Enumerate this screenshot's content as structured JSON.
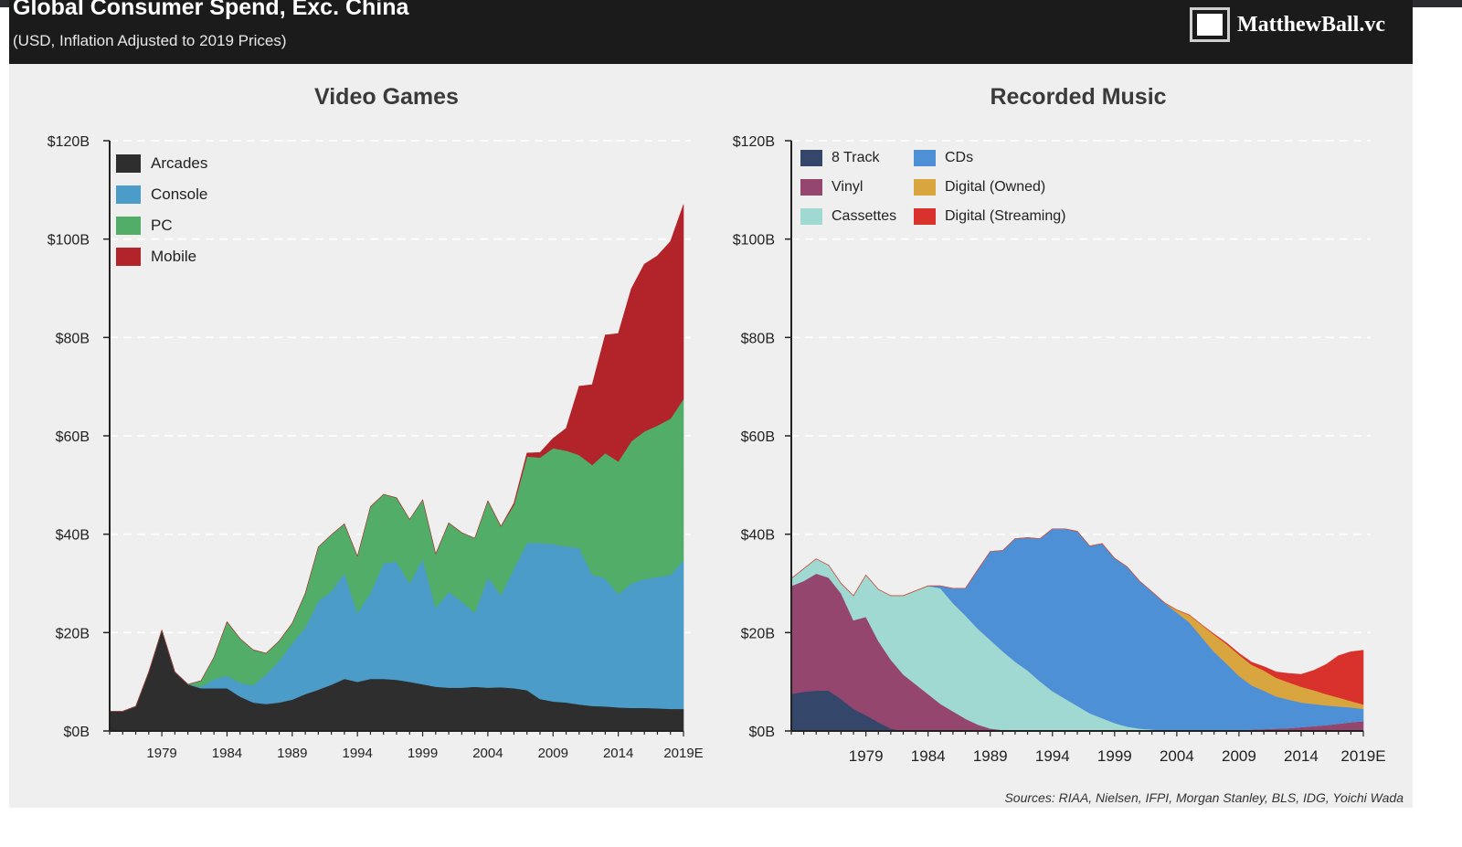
{
  "header": {
    "title": "Global Consumer Spend, Exc. China",
    "subtitle": "(USD, Inflation Adjusted to 2019 Prices)",
    "brand": "MatthewBall.vc",
    "brand_icon": "square-logo-icon"
  },
  "source": "Sources: RIAA, Nielsen, IFPI, Morgan Stanley, BLS, IDG, Yoichi Wada",
  "colors": {
    "arcades": "#2e2e2e",
    "console": "#4b9cc8",
    "pc": "#52ad68",
    "mobile": "#b3232a",
    "track8": "#34466a",
    "vinyl": "#94466f",
    "cassettes": "#9fd9d2",
    "cds": "#4e90d6",
    "digital_owned": "#d9a53e",
    "digital_streaming": "#d9322d"
  },
  "chart_data": [
    {
      "type": "area",
      "stacked": true,
      "title": "Video Games",
      "xlabel": "",
      "ylabel": "",
      "x": [
        1975,
        1976,
        1977,
        1978,
        1979,
        1980,
        1981,
        1982,
        1983,
        1984,
        1985,
        1986,
        1987,
        1988,
        1989,
        1990,
        1991,
        1992,
        1993,
        1994,
        1995,
        1996,
        1997,
        1998,
        1999,
        2000,
        2001,
        2002,
        2003,
        2004,
        2005,
        2006,
        2007,
        2008,
        2009,
        2010,
        2011,
        2012,
        2013,
        2014,
        2015,
        2016,
        2017,
        2018,
        2019
      ],
      "xticks": [
        "1979",
        "1984",
        "1989",
        "1994",
        "1999",
        "2004",
        "2009",
        "2014",
        "2019E"
      ],
      "xtick_values": [
        1979,
        1984,
        1989,
        1994,
        1999,
        2004,
        2009,
        2014,
        2019
      ],
      "ylim": [
        0,
        120
      ],
      "yticks": [
        "$0B",
        "$20B",
        "$40B",
        "$60B",
        "$80B",
        "$100B",
        "$120B"
      ],
      "ytick_values": [
        0,
        20,
        40,
        60,
        80,
        100,
        120
      ],
      "grid": "horizontal dashed",
      "legend": "top-left",
      "series": [
        {
          "name": "Arcades",
          "color_key": "arcades",
          "values": [
            4,
            4,
            5,
            12,
            20.5,
            12,
            9.5,
            8.7,
            8.7,
            8.7,
            7,
            5.8,
            5.5,
            5.8,
            6.4,
            7.5,
            8.4,
            9.4,
            10.6,
            10,
            10.6,
            10.6,
            10.4,
            10,
            9.5,
            9,
            8.8,
            8.8,
            9,
            8.8,
            8.9,
            8.7,
            8.3,
            6.5,
            6,
            5.8,
            5.4,
            5.1,
            5,
            4.8,
            4.7,
            4.7,
            4.6,
            4.5,
            4.5
          ]
        },
        {
          "name": "Console",
          "color_key": "console",
          "values": [
            0,
            0,
            0,
            0,
            0,
            0,
            0,
            0.3,
            1.8,
            2.5,
            2.8,
            3.5,
            6,
            8.5,
            11.5,
            13.5,
            18,
            19,
            21.5,
            14,
            17.5,
            23.5,
            24,
            20,
            25.5,
            16,
            19.5,
            17.5,
            15,
            22.5,
            18.7,
            24.3,
            30,
            31.7,
            32,
            31.7,
            31.8,
            26.7,
            26,
            23,
            25.3,
            26.2,
            26.7,
            27.2,
            30.2
          ]
        },
        {
          "name": "PC",
          "color_key": "pc",
          "values": [
            0,
            0,
            0,
            0,
            0,
            0,
            0,
            1.2,
            4.5,
            11,
            9,
            7.2,
            4.3,
            4,
            4,
            7,
            11,
            11.5,
            10,
            11.5,
            17.5,
            14,
            13,
            13,
            12,
            11,
            14,
            14,
            15.2,
            15.5,
            14,
            13,
            17.5,
            17.4,
            19.5,
            19.5,
            18.9,
            22.3,
            25.5,
            27,
            28.9,
            30,
            30.8,
            31.8,
            32.8
          ]
        },
        {
          "name": "Mobile",
          "color_key": "mobile",
          "values": [
            0,
            0,
            0,
            0,
            0,
            0,
            0,
            0,
            0,
            0,
            0,
            0,
            0,
            0,
            0,
            0,
            0,
            0,
            0,
            0,
            0,
            0,
            0,
            0,
            0,
            0,
            0,
            0,
            0,
            0,
            0,
            0.3,
            0.7,
            1,
            2,
            4.5,
            14,
            16.3,
            24,
            26,
            31,
            34,
            34.5,
            36,
            39.5
          ]
        }
      ]
    },
    {
      "type": "area",
      "stacked": true,
      "title": "Recorded Music",
      "xlabel": "",
      "ylabel": "",
      "x": [
        1973,
        1974,
        1975,
        1976,
        1977,
        1978,
        1979,
        1980,
        1981,
        1982,
        1983,
        1984,
        1985,
        1986,
        1987,
        1988,
        1989,
        1990,
        1991,
        1992,
        1993,
        1994,
        1995,
        1996,
        1997,
        1998,
        1999,
        2000,
        2001,
        2002,
        2003,
        2004,
        2005,
        2006,
        2007,
        2008,
        2009,
        2010,
        2011,
        2012,
        2013,
        2014,
        2015,
        2016,
        2017,
        2018,
        2019
      ],
      "xticks": [
        "1979",
        "1984",
        "1989",
        "1994",
        "1999",
        "2004",
        "2009",
        "2014",
        "2019E"
      ],
      "xtick_values": [
        1979,
        1984,
        1989,
        1994,
        1999,
        2004,
        2009,
        2014,
        2019
      ],
      "ylim": [
        0,
        120
      ],
      "yticks": [
        "$0B",
        "$20B",
        "$40B",
        "$60B",
        "$80B",
        "$100B",
        "$120B"
      ],
      "ytick_values": [
        0,
        20,
        40,
        60,
        80,
        100,
        120
      ],
      "grid": "horizontal dashed",
      "legend": "top-left",
      "series": [
        {
          "name": "8 Track",
          "color_key": "track8",
          "values": [
            7.5,
            8,
            8.2,
            8.2,
            6.5,
            4.5,
            3.2,
            1.8,
            0.5,
            0,
            0,
            0,
            0,
            0,
            0,
            0,
            0,
            0,
            0,
            0,
            0,
            0,
            0,
            0,
            0,
            0,
            0,
            0,
            0,
            0,
            0,
            0,
            0,
            0,
            0,
            0,
            0,
            0,
            0,
            0,
            0,
            0,
            0,
            0,
            0,
            0,
            0
          ]
        },
        {
          "name": "Vinyl",
          "color_key": "vinyl",
          "values": [
            22,
            22.5,
            23.8,
            23,
            21.5,
            18,
            20,
            16.5,
            14,
            11.5,
            9.5,
            7.5,
            5.5,
            4,
            2.5,
            1.3,
            0.5,
            0.2,
            0.1,
            0.1,
            0.1,
            0.1,
            0.1,
            0.1,
            0.1,
            0.1,
            0.1,
            0.1,
            0.1,
            0.1,
            0.1,
            0.1,
            0.1,
            0.1,
            0.1,
            0.2,
            0.2,
            0.3,
            0.4,
            0.5,
            0.6,
            0.8,
            1,
            1.2,
            1.5,
            1.8,
            2
          ]
        },
        {
          "name": "Cassettes",
          "color_key": "cassettes",
          "values": [
            1.5,
            2.5,
            3,
            2.5,
            2,
            5,
            8.5,
            10.5,
            13,
            16,
            19,
            22,
            23.5,
            22,
            21,
            19.5,
            18,
            16,
            14,
            12.2,
            10,
            8,
            6.5,
            5,
            3.5,
            2.5,
            1.5,
            0.8,
            0.4,
            0.2,
            0,
            0,
            0,
            0,
            0,
            0,
            0,
            0,
            0,
            0,
            0,
            0,
            0,
            0,
            0,
            0,
            0
          ]
        },
        {
          "name": "CDs",
          "color_key": "cds",
          "values": [
            0,
            0,
            0,
            0,
            0,
            0,
            0,
            0,
            0,
            0,
            0,
            0,
            0.5,
            3,
            5.5,
            12,
            18,
            20.5,
            25,
            27,
            29,
            33,
            34.5,
            35.5,
            34,
            35.5,
            33.5,
            32.5,
            30,
            28,
            26,
            24,
            22,
            19,
            16,
            13.5,
            11,
            9,
            7.8,
            6.5,
            5.8,
            5,
            4.5,
            4,
            3.5,
            3,
            2.5
          ]
        },
        {
          "name": "Digital (Owned)",
          "color_key": "digital_owned",
          "values": [
            0,
            0,
            0,
            0,
            0,
            0,
            0,
            0,
            0,
            0,
            0,
            0,
            0,
            0,
            0,
            0,
            0,
            0,
            0,
            0,
            0,
            0,
            0,
            0,
            0,
            0,
            0,
            0,
            0,
            0,
            0,
            0.5,
            1.5,
            2.5,
            3.5,
            4,
            4.3,
            4.2,
            4.1,
            3.8,
            3.5,
            3.2,
            2.8,
            2.3,
            1.8,
            1.3,
            0.9
          ]
        },
        {
          "name": "Digital (Streaming)",
          "color_key": "digital_streaming",
          "values": [
            0,
            0,
            0,
            0,
            0,
            0,
            0,
            0,
            0,
            0,
            0,
            0,
            0,
            0,
            0,
            0,
            0,
            0,
            0,
            0,
            0,
            0,
            0,
            0,
            0,
            0,
            0,
            0,
            0,
            0,
            0,
            0,
            0,
            0,
            0.1,
            0.2,
            0.3,
            0.5,
            0.8,
            1.2,
            1.8,
            2.5,
            4,
            6,
            8.5,
            10,
            11
          ]
        }
      ]
    }
  ]
}
